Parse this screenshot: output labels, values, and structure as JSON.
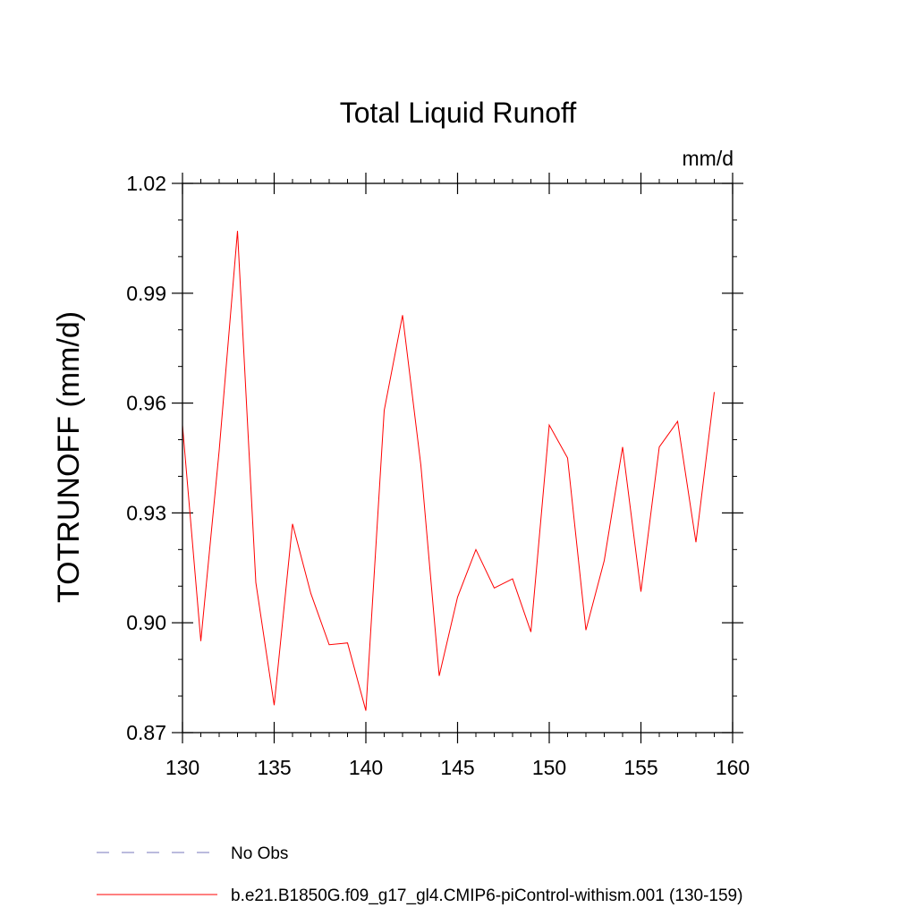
{
  "chart_data": {
    "type": "line",
    "title": "Total Liquid Runoff",
    "units": "mm/d",
    "ylabel": "TOTRUNOFF  (mm/d)",
    "xlabel": "",
    "xlim": [
      130,
      160
    ],
    "ylim": [
      0.87,
      1.02
    ],
    "x_ticks": [
      130,
      135,
      140,
      145,
      150,
      155,
      160
    ],
    "x_tick_labels": [
      "130",
      "135",
      "140",
      "145",
      "150",
      "155",
      "160"
    ],
    "y_ticks": [
      0.87,
      0.9,
      0.93,
      0.96,
      0.99,
      1.02
    ],
    "y_tick_labels": [
      "0.87",
      "0.90",
      "0.93",
      "0.96",
      "0.99",
      "1.02"
    ],
    "grid": false,
    "legend_position": "bottom-left",
    "series": [
      {
        "name": "No Obs",
        "color": "#7777bb",
        "dashed": true,
        "x": [],
        "values": []
      },
      {
        "name": "b.e21.B1850G.f09_g17_gl4.CMIP6-piControl-withism.001 (130-159)",
        "color": "#ff0000",
        "dashed": false,
        "x": [
          130,
          131,
          132,
          133,
          134,
          135,
          136,
          137,
          138,
          139,
          140,
          141,
          142,
          143,
          144,
          145,
          146,
          147,
          148,
          149,
          150,
          151,
          152,
          153,
          154,
          155,
          156,
          157,
          158,
          159
        ],
        "values": [
          0.954,
          0.895,
          0.947,
          1.007,
          0.911,
          0.8775,
          0.927,
          0.908,
          0.894,
          0.8945,
          0.876,
          0.958,
          0.984,
          0.943,
          0.8855,
          0.907,
          0.92,
          0.9095,
          0.912,
          0.8975,
          0.954,
          0.945,
          0.898,
          0.917,
          0.948,
          0.9085,
          0.948,
          0.955,
          0.922,
          0.963
        ]
      }
    ]
  }
}
